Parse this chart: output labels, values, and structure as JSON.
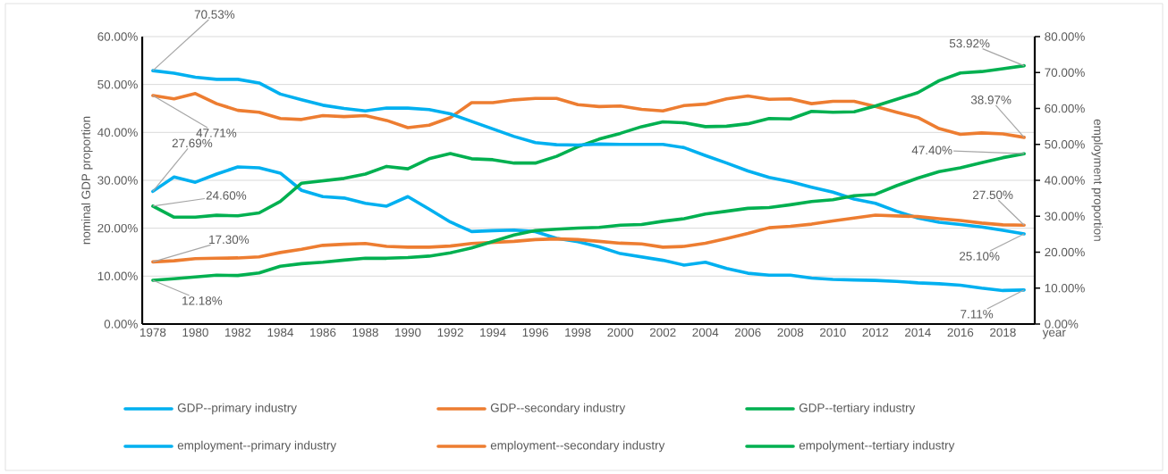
{
  "chart_data": {
    "type": "line",
    "categories": [
      "1978",
      null,
      "1980",
      null,
      "1982",
      null,
      "1984",
      null,
      "1986",
      null,
      "1988",
      null,
      "1990",
      null,
      "1992",
      null,
      "1994",
      null,
      "1996",
      null,
      "1998",
      null,
      "2000",
      null,
      "2002",
      null,
      "2004",
      null,
      "2006",
      null,
      "2008",
      null,
      "2010",
      null,
      "2012",
      null,
      "2014",
      null,
      "2016",
      null,
      "2018",
      null
    ],
    "xlabel": "year",
    "ylabel": "nominal GDP proportion",
    "y2label": "employment proportion",
    "ylim": [
      0,
      60
    ],
    "yticks": [
      {
        "value": 0,
        "label": "0.00%"
      },
      {
        "value": 10,
        "label": "10.00%"
      },
      {
        "value": 20,
        "label": "20.00%"
      },
      {
        "value": 30,
        "label": "30.00%"
      },
      {
        "value": 40,
        "label": "40.00%"
      },
      {
        "value": 50,
        "label": "50.00%"
      },
      {
        "value": 60,
        "label": "60.00%"
      }
    ],
    "y2lim": [
      0,
      80
    ],
    "y2ticks": [
      {
        "value": 0,
        "label": "0.00%"
      },
      {
        "value": 10,
        "label": "10.00%"
      },
      {
        "value": 20,
        "label": "20.00%"
      },
      {
        "value": 30,
        "label": "30.00%"
      },
      {
        "value": 40,
        "label": "40.00%"
      },
      {
        "value": 50,
        "label": "50.00%"
      },
      {
        "value": 60,
        "label": "60.00%"
      },
      {
        "value": 70,
        "label": "70.00%"
      },
      {
        "value": 80,
        "label": "80.00%"
      }
    ],
    "grid": "y",
    "legend": "bottom",
    "series": [
      {
        "name": "GDP--primary industry",
        "color": "#00b0f0",
        "values": [
          27.69,
          30.7,
          29.6,
          31.3,
          32.8,
          32.6,
          31.5,
          27.9,
          26.6,
          26.3,
          25.2,
          24.6,
          26.6,
          24.0,
          21.3,
          19.3,
          19.5,
          19.6,
          19.3,
          17.9,
          17.2,
          16.1,
          14.7,
          14.0,
          13.3,
          12.3,
          12.9,
          11.6,
          10.6,
          10.2,
          10.2,
          9.6,
          9.3,
          9.2,
          9.1,
          8.9,
          8.6,
          8.4,
          8.1,
          7.5,
          7.0,
          7.11
        ],
        "value_labels": [
          "27.69%",
          null,
          null,
          null,
          null,
          null,
          null,
          null,
          null,
          null,
          null,
          null,
          null,
          null,
          null,
          null,
          null,
          null,
          null,
          null,
          null,
          null,
          null,
          null,
          null,
          null,
          null,
          null,
          null,
          null,
          null,
          null,
          null,
          null,
          null,
          null,
          null,
          null,
          null,
          null,
          null,
          "7.11%"
        ]
      },
      {
        "name": "GDP--secondary industry",
        "color": "#ed7d31",
        "values": [
          47.71,
          47.0,
          48.1,
          46.0,
          44.6,
          44.2,
          42.9,
          42.7,
          43.5,
          43.3,
          43.5,
          42.5,
          41.0,
          41.5,
          43.1,
          46.2,
          46.2,
          46.8,
          47.1,
          47.1,
          45.8,
          45.4,
          45.5,
          44.8,
          44.5,
          45.6,
          45.9,
          47.0,
          47.6,
          46.9,
          47.0,
          46.0,
          46.5,
          46.5,
          45.4,
          44.2,
          43.1,
          40.8,
          39.6,
          39.9,
          39.7,
          38.97
        ],
        "value_labels": [
          "47.71%",
          null,
          null,
          null,
          null,
          null,
          null,
          null,
          null,
          null,
          null,
          null,
          null,
          null,
          null,
          null,
          null,
          null,
          null,
          null,
          null,
          null,
          null,
          null,
          null,
          null,
          null,
          null,
          null,
          null,
          null,
          null,
          null,
          null,
          null,
          null,
          null,
          null,
          null,
          null,
          null,
          "38.97%"
        ]
      },
      {
        "name": "GDP--tertiary industry",
        "color": "#00b050",
        "values": [
          24.6,
          22.3,
          22.3,
          22.7,
          22.6,
          23.2,
          25.6,
          29.4,
          29.9,
          30.4,
          31.3,
          32.9,
          32.4,
          34.5,
          35.6,
          34.5,
          34.3,
          33.6,
          33.6,
          35.0,
          37.0,
          38.6,
          39.8,
          41.2,
          42.2,
          42.0,
          41.2,
          41.3,
          41.8,
          42.9,
          42.8,
          44.4,
          44.2,
          44.3,
          45.5,
          46.9,
          48.3,
          50.8,
          52.4,
          52.7,
          53.3,
          53.92
        ],
        "value_labels": [
          "24.60%",
          null,
          null,
          null,
          null,
          null,
          null,
          null,
          null,
          null,
          null,
          null,
          null,
          null,
          null,
          null,
          null,
          null,
          null,
          null,
          null,
          null,
          null,
          null,
          null,
          null,
          null,
          null,
          null,
          null,
          null,
          null,
          null,
          null,
          null,
          null,
          null,
          null,
          null,
          null,
          null,
          "53.92%"
        ]
      },
      {
        "name": "employment--primary industry",
        "color": "#00b0f0",
        "axis": "y2",
        "values": [
          70.53,
          69.8,
          68.7,
          68.1,
          68.1,
          67.1,
          64.0,
          62.4,
          60.9,
          60.0,
          59.3,
          60.1,
          60.1,
          59.7,
          58.5,
          56.4,
          54.3,
          52.2,
          50.5,
          49.9,
          49.8,
          50.1,
          50.0,
          50.0,
          50.0,
          49.1,
          46.9,
          44.8,
          42.6,
          40.8,
          39.6,
          38.1,
          36.7,
          34.8,
          33.6,
          31.4,
          29.5,
          28.3,
          27.7,
          27.0,
          26.1,
          25.1
        ],
        "value_labels": [
          "70.53%",
          null,
          null,
          null,
          null,
          null,
          null,
          null,
          null,
          null,
          null,
          null,
          null,
          null,
          null,
          null,
          null,
          null,
          null,
          null,
          null,
          null,
          null,
          null,
          null,
          null,
          null,
          null,
          null,
          null,
          null,
          null,
          null,
          null,
          null,
          null,
          null,
          null,
          null,
          null,
          null,
          "25.10%"
        ]
      },
      {
        "name": "employment--secondary industry",
        "color": "#ed7d31",
        "axis": "y2",
        "values": [
          17.3,
          17.6,
          18.2,
          18.3,
          18.4,
          18.7,
          19.9,
          20.8,
          21.9,
          22.2,
          22.4,
          21.6,
          21.4,
          21.4,
          21.7,
          22.4,
          22.7,
          23.0,
          23.5,
          23.7,
          23.5,
          23.0,
          22.5,
          22.3,
          21.4,
          21.6,
          22.5,
          23.8,
          25.2,
          26.8,
          27.2,
          27.8,
          28.7,
          29.5,
          30.3,
          30.1,
          29.9,
          29.3,
          28.8,
          28.1,
          27.6,
          27.5
        ],
        "value_labels": [
          "17.30%",
          null,
          null,
          null,
          null,
          null,
          null,
          null,
          null,
          null,
          null,
          null,
          null,
          null,
          null,
          null,
          null,
          null,
          null,
          null,
          null,
          null,
          null,
          null,
          null,
          null,
          null,
          null,
          null,
          null,
          null,
          null,
          null,
          null,
          null,
          null,
          null,
          null,
          null,
          null,
          null,
          "27.50%"
        ]
      },
      {
        "name": "empolyment--tertiary industry",
        "color": "#00b050",
        "axis": "y2",
        "values": [
          12.18,
          12.6,
          13.1,
          13.6,
          13.5,
          14.2,
          16.1,
          16.8,
          17.2,
          17.8,
          18.3,
          18.3,
          18.5,
          18.9,
          19.8,
          21.2,
          23.0,
          24.8,
          26.0,
          26.4,
          26.7,
          26.9,
          27.5,
          27.7,
          28.6,
          29.3,
          30.6,
          31.4,
          32.2,
          32.4,
          33.2,
          34.1,
          34.6,
          35.7,
          36.1,
          38.5,
          40.6,
          42.4,
          43.5,
          44.9,
          46.3,
          47.4
        ],
        "value_labels": [
          "12.18%",
          null,
          null,
          null,
          null,
          null,
          null,
          null,
          null,
          null,
          null,
          null,
          null,
          null,
          null,
          null,
          null,
          null,
          null,
          null,
          null,
          null,
          null,
          null,
          null,
          null,
          null,
          null,
          null,
          null,
          null,
          null,
          null,
          null,
          null,
          null,
          null,
          null,
          null,
          null,
          null,
          "47.40%"
        ]
      }
    ]
  }
}
